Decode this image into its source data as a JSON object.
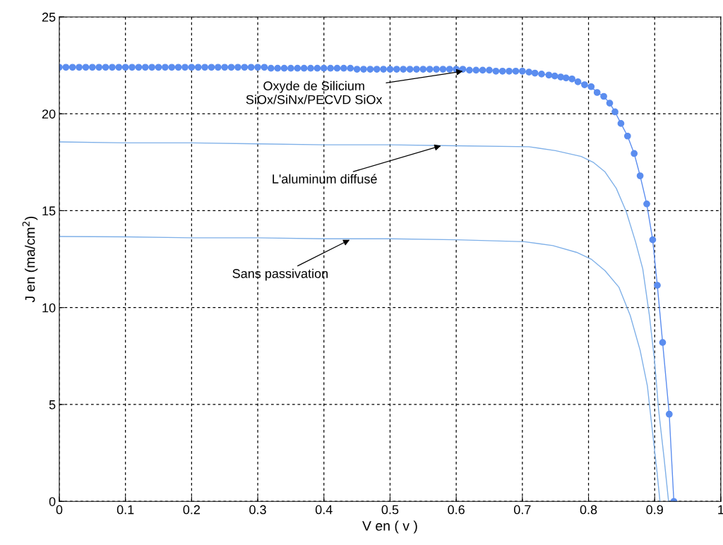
{
  "chart_data": {
    "type": "line",
    "xlabel": "V en ( v )",
    "ylabel": "J en (ma/cm$^{2}$)",
    "xlim": [
      0,
      1
    ],
    "ylim": [
      0,
      25
    ],
    "xticks": [
      0,
      0.1,
      0.2,
      0.3,
      0.4,
      0.5,
      0.6,
      0.7,
      0.8,
      0.9,
      1
    ],
    "yticks": [
      0,
      5,
      10,
      15,
      20,
      25
    ],
    "grid": true,
    "line_style": "solid",
    "series": [
      {
        "color": "#5b8def",
        "marker": "circle",
        "x": [
          0,
          0.01,
          0.02,
          0.03,
          0.04,
          0.05,
          0.06,
          0.07,
          0.08,
          0.09,
          0.1,
          0.11,
          0.12,
          0.13,
          0.14,
          0.15,
          0.16,
          0.17,
          0.18,
          0.19,
          0.2,
          0.21,
          0.22,
          0.23,
          0.24,
          0.25,
          0.26,
          0.27,
          0.28,
          0.29,
          0.3,
          0.31,
          0.32,
          0.33,
          0.34,
          0.35,
          0.36,
          0.37,
          0.38,
          0.39,
          0.4,
          0.41,
          0.42,
          0.43,
          0.44,
          0.45,
          0.46,
          0.47,
          0.48,
          0.49,
          0.5,
          0.51,
          0.52,
          0.53,
          0.54,
          0.55,
          0.56,
          0.57,
          0.58,
          0.59,
          0.6,
          0.61,
          0.62,
          0.63,
          0.64,
          0.65,
          0.66,
          0.67,
          0.68,
          0.69,
          0.7,
          0.71,
          0.719,
          0.729,
          0.74,
          0.749,
          0.758,
          0.766,
          0.775,
          0.784,
          0.794,
          0.804,
          0.813,
          0.823,
          0.832,
          0.84,
          0.849,
          0.859,
          0.869,
          0.878,
          0.888,
          0.897,
          0.904,
          0.912,
          0.922,
          0.929
        ],
        "values": [
          22.4,
          22.4,
          22.4,
          22.4,
          22.4,
          22.4,
          22.4,
          22.4,
          22.4,
          22.4,
          22.4,
          22.4,
          22.4,
          22.4,
          22.4,
          22.4,
          22.4,
          22.4,
          22.4,
          22.4,
          22.4,
          22.4,
          22.4,
          22.4,
          22.4,
          22.4,
          22.4,
          22.4,
          22.4,
          22.4,
          22.4,
          22.4,
          22.35,
          22.35,
          22.35,
          22.35,
          22.35,
          22.35,
          22.35,
          22.35,
          22.35,
          22.35,
          22.35,
          22.35,
          22.35,
          22.3,
          22.3,
          22.3,
          22.3,
          22.3,
          22.3,
          22.3,
          22.3,
          22.3,
          22.3,
          22.3,
          22.3,
          22.3,
          22.3,
          22.3,
          22.3,
          22.3,
          22.25,
          22.25,
          22.25,
          22.25,
          22.2,
          22.2,
          22.2,
          22.2,
          22.2,
          22.15,
          22.1,
          22.05,
          22.0,
          21.95,
          21.9,
          21.85,
          21.8,
          21.65,
          21.5,
          21.4,
          21.1,
          20.9,
          20.55,
          20.1,
          19.5,
          18.85,
          17.95,
          16.8,
          15.35,
          13.5,
          11.15,
          8.2,
          4.5,
          0
        ]
      },
      {
        "color": "#7fb0e8",
        "marker": "none",
        "x": [
          0,
          0.1,
          0.2,
          0.3,
          0.4,
          0.5,
          0.6,
          0.71,
          0.75,
          0.789,
          0.807,
          0.825,
          0.842,
          0.857,
          0.871,
          0.882,
          0.892,
          0.9,
          0.906,
          0.914,
          0.921
        ],
        "values": [
          18.55,
          18.5,
          18.5,
          18.45,
          18.4,
          18.4,
          18.35,
          18.3,
          18.1,
          17.8,
          17.5,
          17.0,
          16.15,
          14.95,
          13.4,
          12.0,
          9.6,
          7.2,
          4.7,
          2.3,
          0
        ]
      },
      {
        "color": "#7fb0e8",
        "marker": "none",
        "x": [
          0,
          0.1,
          0.2,
          0.3,
          0.4,
          0.5,
          0.6,
          0.703,
          0.746,
          0.782,
          0.804,
          0.825,
          0.846,
          0.863,
          0.878,
          0.889,
          0.895,
          0.903,
          0.908
        ],
        "values": [
          13.67,
          13.65,
          13.6,
          13.6,
          13.55,
          13.55,
          13.5,
          13.4,
          13.2,
          12.85,
          12.5,
          11.9,
          11.05,
          9.6,
          7.8,
          5.95,
          4.1,
          1.7,
          0
        ]
      }
    ],
    "annotations": [
      {
        "text": "Oxyde de Silicium\nSiOx/SiNx/PECVD SiOx",
        "x": 0.61,
        "y": 22.2
      },
      {
        "text": "L'aluminum diffusé",
        "x": 0.577,
        "y": 18.35
      },
      {
        "text": "Sans passivation",
        "x": 0.439,
        "y": 13.5
      }
    ]
  }
}
